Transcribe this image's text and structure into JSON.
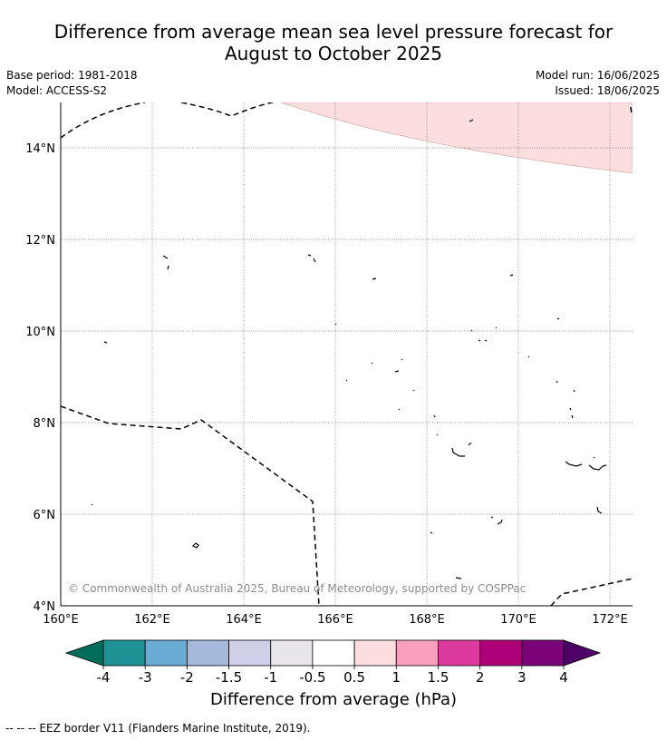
{
  "header": {
    "title_line1": "Difference from average mean sea level pressure forecast for",
    "title_line2": "August to October 2025",
    "base_period": "Base period: 1981-2018",
    "model": "Model: ACCESS-S2",
    "model_run": "Model run: 16/06/2025",
    "issued": "Issued: 18/06/2025"
  },
  "map": {
    "lat_labels": [
      "14°N",
      "12°N",
      "10°N",
      "8°N",
      "6°N",
      "4°N"
    ],
    "lon_labels": [
      "160°E",
      "162°E",
      "164°E",
      "166°E",
      "168°E",
      "170°E",
      "172°E"
    ],
    "copyright": "© Commonwealth of Australia 2025, Bureau of Meteorology, supported by COSPPac",
    "anomaly_region_color": "#fddede"
  },
  "colorbar": {
    "ticks": [
      "-4",
      "-3",
      "-2",
      "-1.5",
      "-1",
      "-0.5",
      "0.5",
      "1",
      "1.5",
      "2",
      "3",
      "4"
    ],
    "colors": [
      "#006d5a",
      "#1f9295",
      "#6aabd4",
      "#a5b9dc",
      "#cfd0e8",
      "#e8e6eb",
      "#ffffff",
      "#fddede",
      "#f79fbd",
      "#dc3a9e",
      "#ad0078",
      "#7a0177",
      "#4d0066"
    ],
    "title": "Difference from average (hPa)"
  },
  "footer": {
    "legend": "--  --  -- EEZ border V11 (Flanders Marine Institute, 2019)."
  }
}
